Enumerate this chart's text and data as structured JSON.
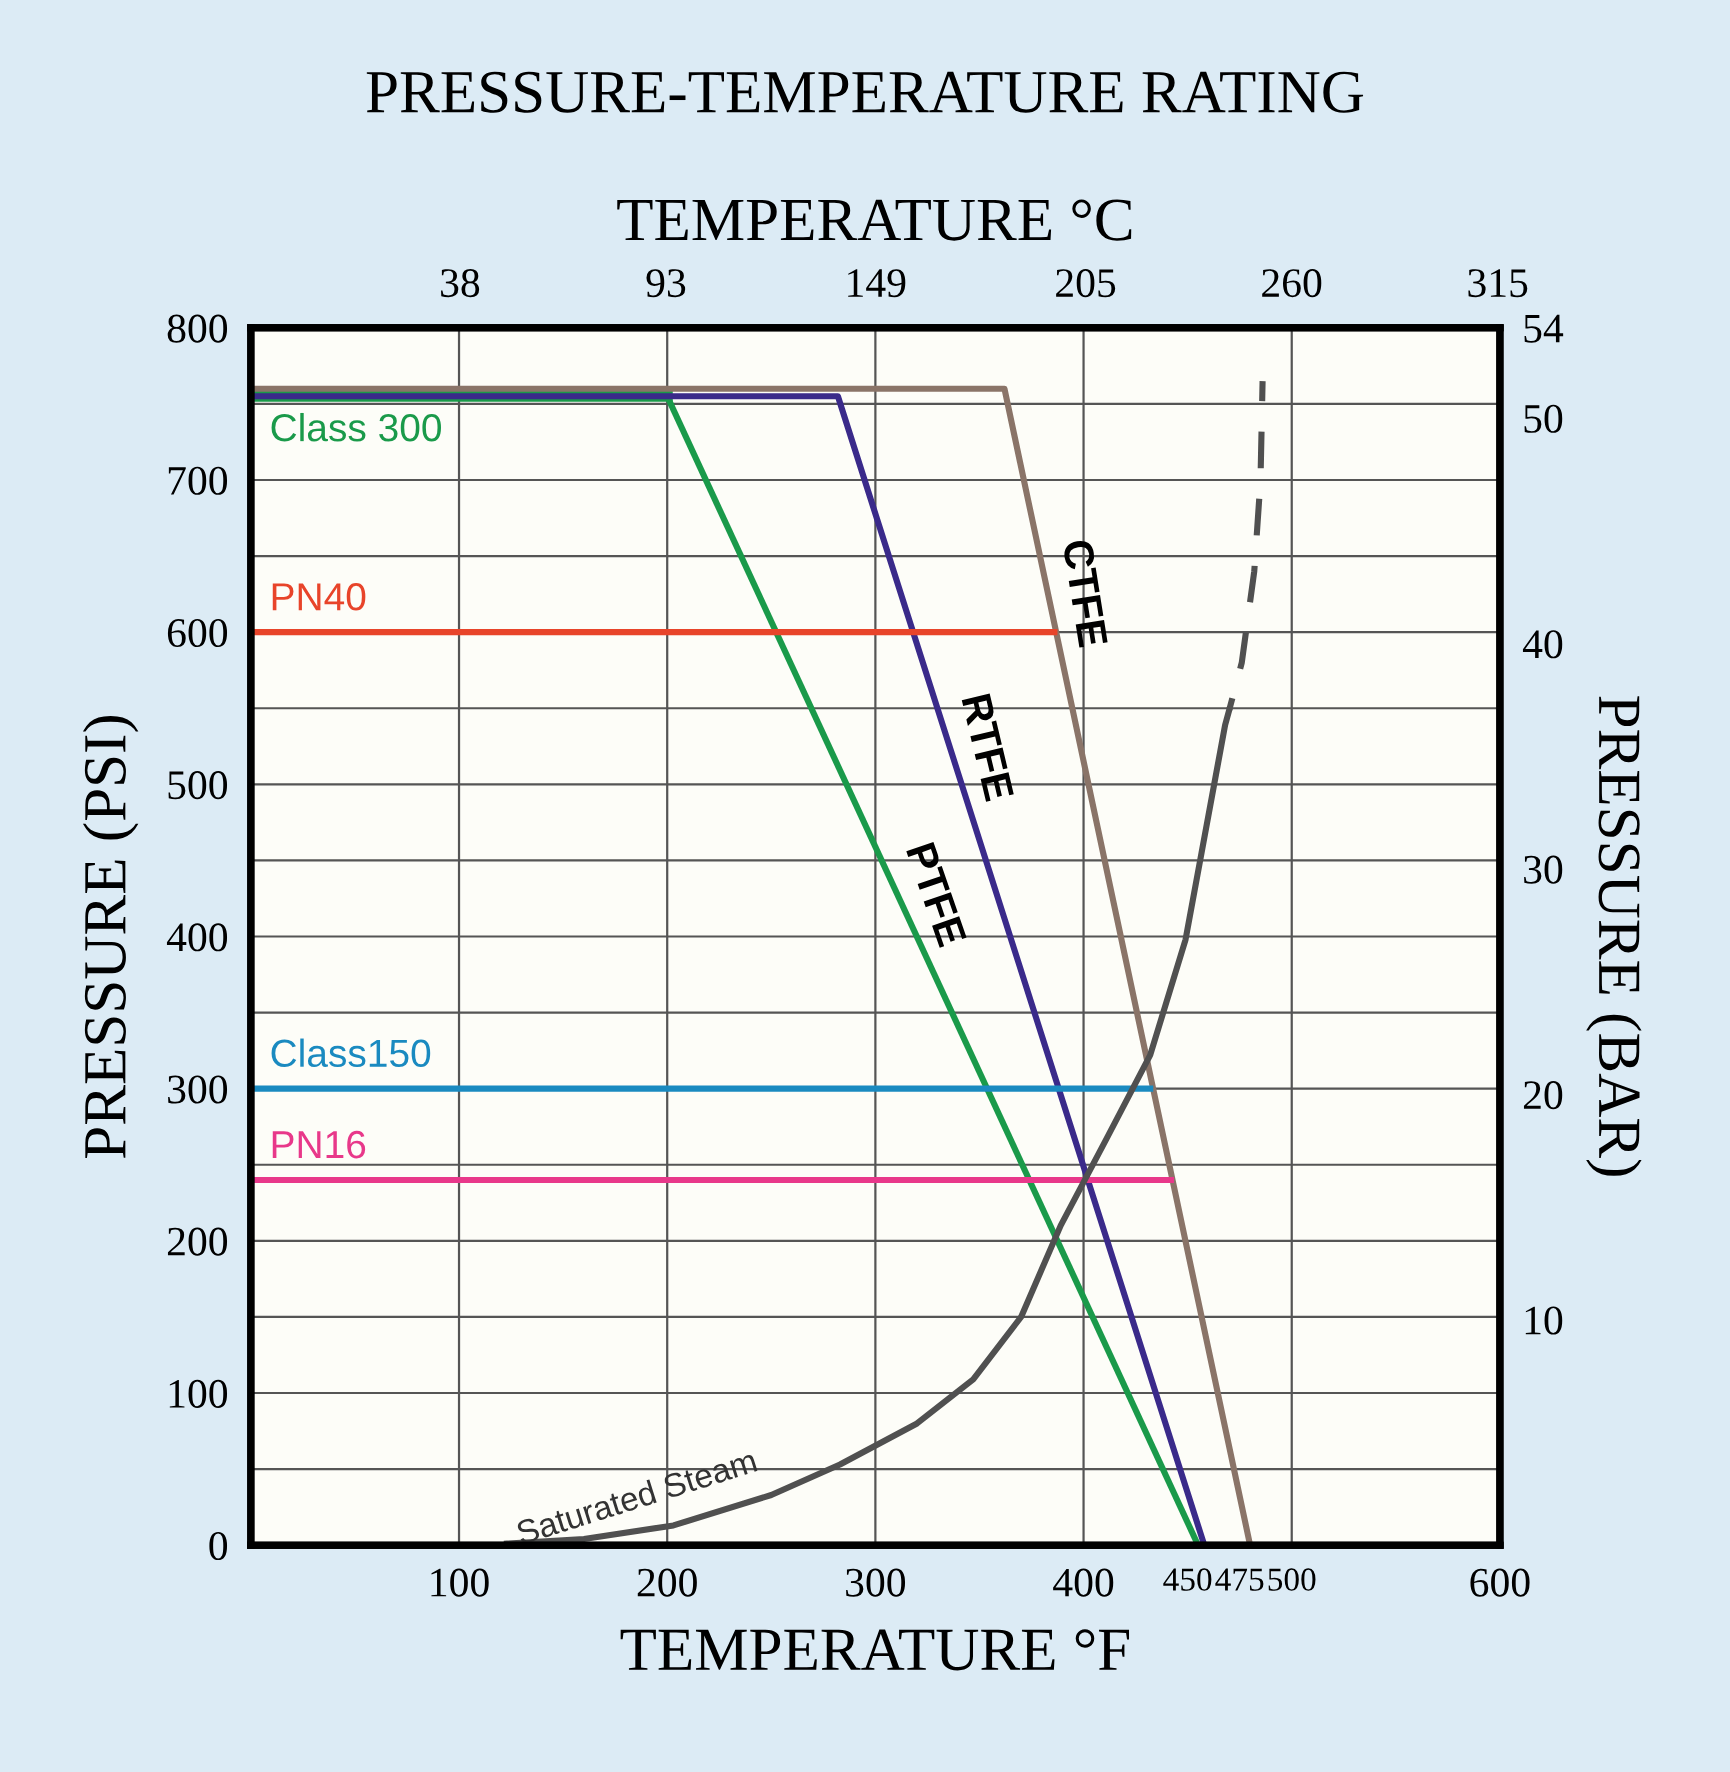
{
  "chart_data": {
    "type": "line",
    "title": "PRESSURE-TEMPERATURE RATING",
    "x2label": "TEMPERATURE °C",
    "xlabel": "TEMPERATURE °F",
    "ylabel": "PRESSURE (PSI)",
    "y2label": "PRESSURE (BAR)",
    "xlim": [
      0,
      600
    ],
    "xticks": [
      100,
      200,
      300,
      400,
      450,
      475,
      500,
      600
    ],
    "x2lim": [
      -17.8,
      315.6
    ],
    "x2ticks": [
      38,
      93,
      149,
      205,
      260,
      315
    ],
    "ylim": [
      0,
      800
    ],
    "yticks": [
      0,
      100,
      200,
      300,
      400,
      500,
      600,
      700,
      800
    ],
    "y2lim": [
      0,
      54
    ],
    "y2ticks": [
      10,
      20,
      30,
      40,
      50,
      54
    ],
    "grid": true,
    "legend": false,
    "line_style": "solid",
    "marker": "none",
    "series": [
      {
        "name": "Class 300",
        "color": "#1a9a4a",
        "x": [
          0,
          200
        ],
        "values": [
          755,
          755
        ]
      },
      {
        "name": "PTFE",
        "color": "#1a9a4a",
        "x": [
          200,
          455
        ],
        "values": [
          755,
          0
        ]
      },
      {
        "name": "RTFE",
        "color": "#3a2a8a",
        "x": [
          0,
          282,
          458
        ],
        "values": [
          755,
          755,
          0
        ]
      },
      {
        "name": "CTFE",
        "color": "#8a7468",
        "x": [
          0,
          362,
          480
        ],
        "values": [
          760,
          760,
          0
        ]
      },
      {
        "name": "PN40",
        "color": "#e8442a",
        "x": [
          0,
          386
        ],
        "values": [
          600,
          600
        ]
      },
      {
        "name": "Class150",
        "color": "#1a8ac0",
        "x": [
          0,
          432
        ],
        "values": [
          300,
          300
        ]
      },
      {
        "name": "PN16",
        "color": "#e8388a",
        "x": [
          0,
          442
        ],
        "values": [
          240,
          240
        ]
      },
      {
        "name": "Saturated Steam",
        "color": "#505050",
        "x": [
          123,
          160,
          203,
          250,
          283,
          320,
          347,
          370,
          389,
          411,
          432,
          449,
          468,
          470
        ],
        "values": [
          1,
          4,
          13,
          33,
          53,
          80,
          109,
          150,
          210,
          267,
          322,
          398,
          539,
          549
        ]
      },
      {
        "color": "#505050",
        "line_style": "dashed",
        "x": [
          470,
          476,
          482,
          485,
          486
        ],
        "values": [
          549,
          580,
          640,
          700,
          765
        ]
      }
    ]
  }
}
